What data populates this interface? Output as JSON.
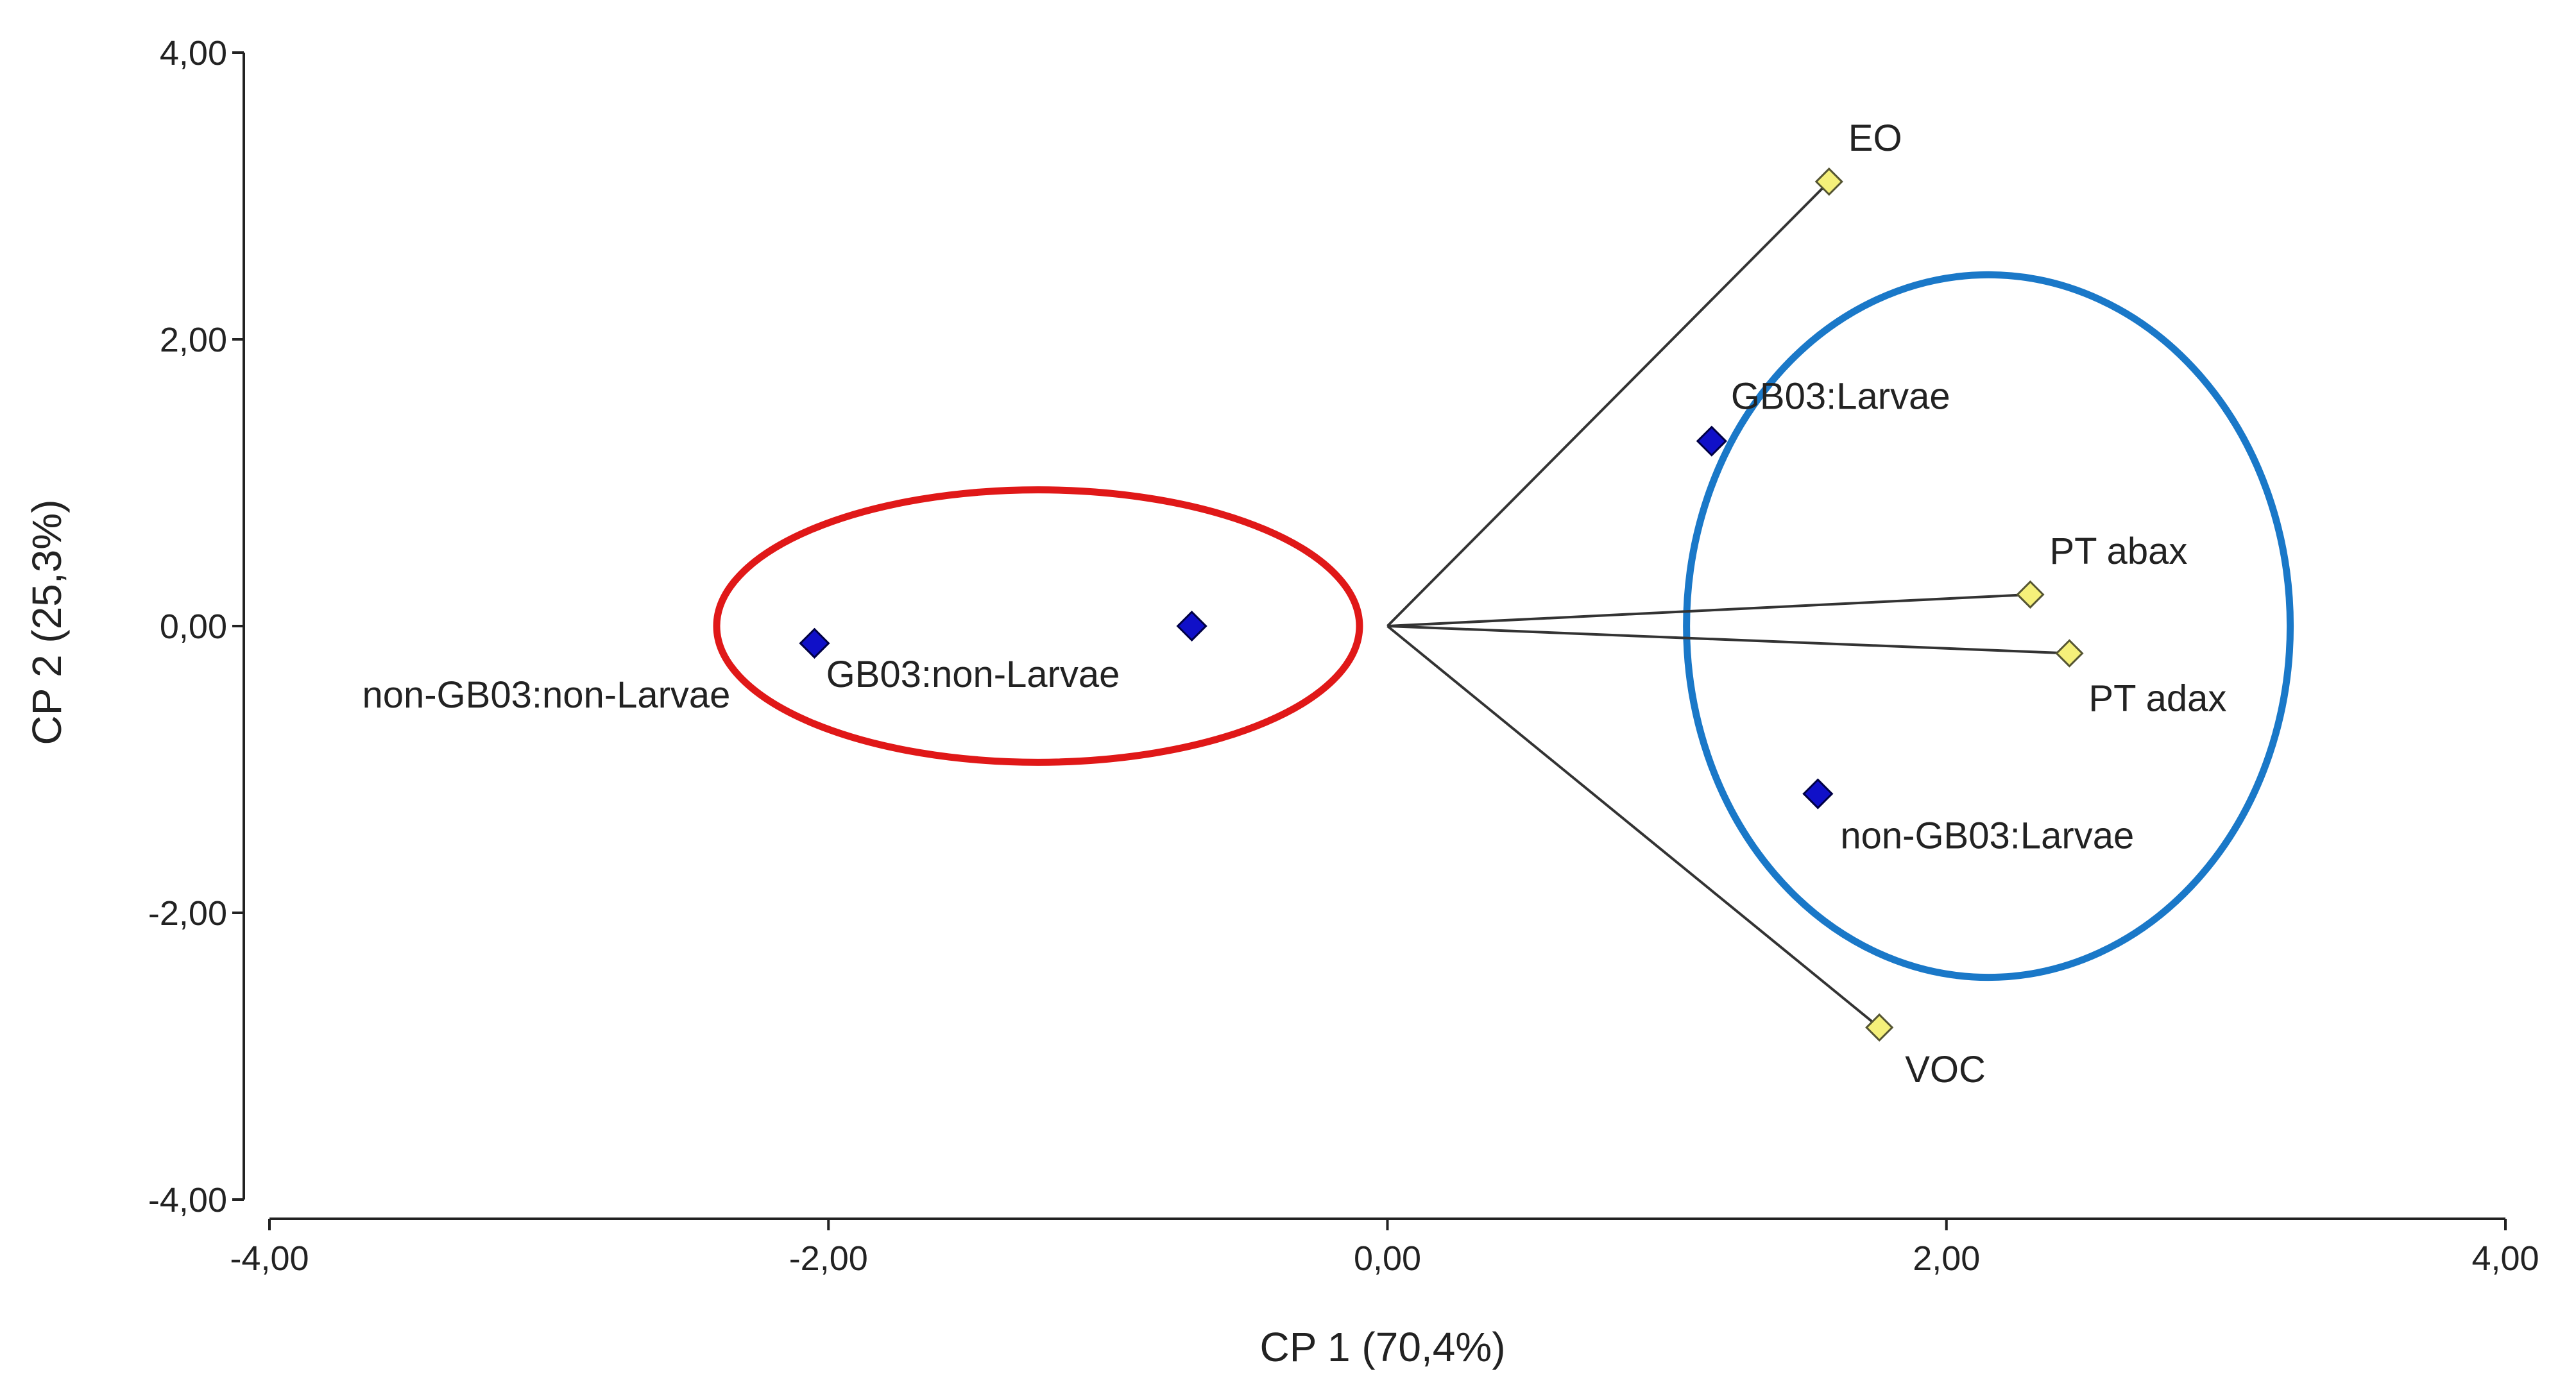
{
  "chart_data": {
    "type": "scatter",
    "subtype": "biplot",
    "title": "",
    "xlabel": "CP 1 (70,4%)",
    "ylabel": "CP 2 (25,3%)",
    "xlim": [
      -4.0,
      4.0
    ],
    "ylim": [
      -4.0,
      4.0
    ],
    "x_ticks": [
      "-4,00",
      "-2,00",
      "0,00",
      "2,00",
      "4,00"
    ],
    "y_ticks": [
      "4,00",
      "2,00",
      "0,00",
      "-2,00",
      "-4,00"
    ],
    "grid": false,
    "legend": null,
    "series": [
      {
        "type": "observations",
        "marker": "diamond",
        "color": "#1010c8",
        "points": [
          {
            "x": -2.05,
            "y": -0.12,
            "label": "non-GB03:non-Larvae"
          },
          {
            "x": -0.7,
            "y": 0.0,
            "label": "GB03:non-Larvae"
          },
          {
            "x": 1.16,
            "y": 1.29,
            "label": "GB03:Larvae"
          },
          {
            "x": 1.54,
            "y": -1.17,
            "label": "non-GB03:Larvae"
          }
        ]
      },
      {
        "type": "variables",
        "marker": "diamond",
        "color": "#f5f07a",
        "points": [
          {
            "x": 1.58,
            "y": 3.1,
            "label": "EO"
          },
          {
            "x": 2.3,
            "y": 0.22,
            "label": "PT abax"
          },
          {
            "x": 2.44,
            "y": -0.19,
            "label": "PT adax"
          },
          {
            "x": 1.76,
            "y": -2.8,
            "label": "VOC"
          }
        ]
      }
    ],
    "annotations": [
      {
        "shape": "ellipse",
        "color": "#e01818",
        "center": [
          -1.25,
          0.0
        ],
        "radii": [
          1.15,
          0.95
        ]
      },
      {
        "shape": "ellipse",
        "color": "#1a78c8",
        "center": [
          2.15,
          0.0
        ],
        "radii": [
          1.08,
          2.45
        ]
      }
    ]
  }
}
